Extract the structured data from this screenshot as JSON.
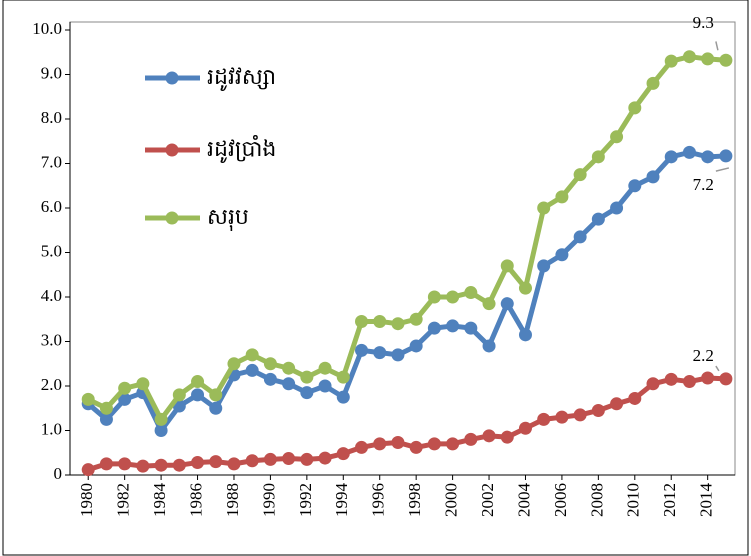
{
  "chart_data": {
    "type": "line",
    "x": [
      1980,
      1981,
      1982,
      1983,
      1984,
      1985,
      1986,
      1987,
      1988,
      1989,
      1990,
      1991,
      1992,
      1993,
      1994,
      1995,
      1996,
      1997,
      1998,
      1999,
      2000,
      2001,
      2002,
      2003,
      2004,
      2005,
      2006,
      2007,
      2008,
      2009,
      2010,
      2011,
      2012,
      2013,
      2014,
      2015
    ],
    "xlim": [
      1979,
      2015.5
    ],
    "xticks": [
      1980,
      1982,
      1984,
      1986,
      1988,
      1990,
      1992,
      1994,
      1996,
      1998,
      2000,
      2002,
      2004,
      2006,
      2008,
      2010,
      2012,
      2014
    ],
    "ylim": [
      0,
      10
    ],
    "yticks": [
      0,
      {
        "value": 1,
        "label": "1.0"
      },
      {
        "value": 2,
        "label": "2.0"
      },
      {
        "value": 3,
        "label": "3.0"
      },
      {
        "value": 4,
        "label": "4.0"
      },
      {
        "value": 5,
        "label": "5.0"
      },
      {
        "value": 6,
        "label": "6.0"
      },
      {
        "value": 7,
        "label": "7.0"
      },
      {
        "value": 8,
        "label": "8.0"
      },
      {
        "value": 9,
        "label": "9.0"
      },
      {
        "value": 10,
        "label": "10.0"
      }
    ],
    "grid": false,
    "legend": "upper left",
    "series": [
      {
        "name": "រដូវវស្សា",
        "color": "#4f81bd",
        "values": [
          1.6,
          1.25,
          1.7,
          1.85,
          1.0,
          1.55,
          1.8,
          1.5,
          2.25,
          2.35,
          2.15,
          2.05,
          1.85,
          2.0,
          1.75,
          2.8,
          2.75,
          2.7,
          2.9,
          3.3,
          3.35,
          3.3,
          2.9,
          3.85,
          3.15,
          4.7,
          4.95,
          5.35,
          5.75,
          6.0,
          6.5,
          6.7,
          7.15,
          7.25,
          7.15,
          7.17
        ],
        "value_labels": [
          null,
          null,
          null,
          null,
          null,
          null,
          null,
          null,
          null,
          null,
          null,
          null,
          null,
          null,
          null,
          null,
          null,
          null,
          null,
          null,
          null,
          null,
          null,
          null,
          null,
          null,
          null,
          null,
          null,
          null,
          null,
          null,
          null,
          null,
          null,
          "7.2"
        ]
      },
      {
        "name": "រដូវប្រាំង",
        "color": "#c0504d",
        "values": [
          0.12,
          0.25,
          0.25,
          0.2,
          0.22,
          0.22,
          0.28,
          0.3,
          0.25,
          0.32,
          0.35,
          0.37,
          0.35,
          0.38,
          0.48,
          0.62,
          0.7,
          0.73,
          0.62,
          0.7,
          0.7,
          0.8,
          0.88,
          0.85,
          1.05,
          1.25,
          1.3,
          1.35,
          1.45,
          1.6,
          1.72,
          2.05,
          2.15,
          2.1,
          2.18,
          2.16
        ],
        "value_labels": [
          null,
          null,
          null,
          null,
          null,
          null,
          null,
          null,
          null,
          null,
          null,
          null,
          null,
          null,
          null,
          null,
          null,
          null,
          null,
          null,
          null,
          null,
          null,
          null,
          null,
          null,
          null,
          null,
          null,
          null,
          null,
          null,
          null,
          null,
          null,
          "2.2"
        ]
      },
      {
        "name": "សរុប",
        "color": "#9bbb59",
        "values": [
          1.7,
          1.5,
          1.95,
          2.05,
          1.25,
          1.8,
          2.1,
          1.8,
          2.5,
          2.7,
          2.5,
          2.4,
          2.2,
          2.4,
          2.2,
          3.45,
          3.45,
          3.4,
          3.5,
          4.0,
          4.0,
          4.1,
          3.85,
          4.7,
          4.2,
          6.0,
          6.25,
          6.75,
          7.15,
          7.6,
          8.25,
          8.8,
          9.3,
          9.4,
          9.35,
          9.32
        ],
        "value_labels": [
          null,
          null,
          null,
          null,
          null,
          null,
          null,
          null,
          null,
          null,
          null,
          null,
          null,
          null,
          null,
          null,
          null,
          null,
          null,
          null,
          null,
          null,
          null,
          null,
          null,
          null,
          null,
          null,
          null,
          null,
          null,
          null,
          null,
          null,
          null,
          "9.3"
        ]
      }
    ]
  }
}
